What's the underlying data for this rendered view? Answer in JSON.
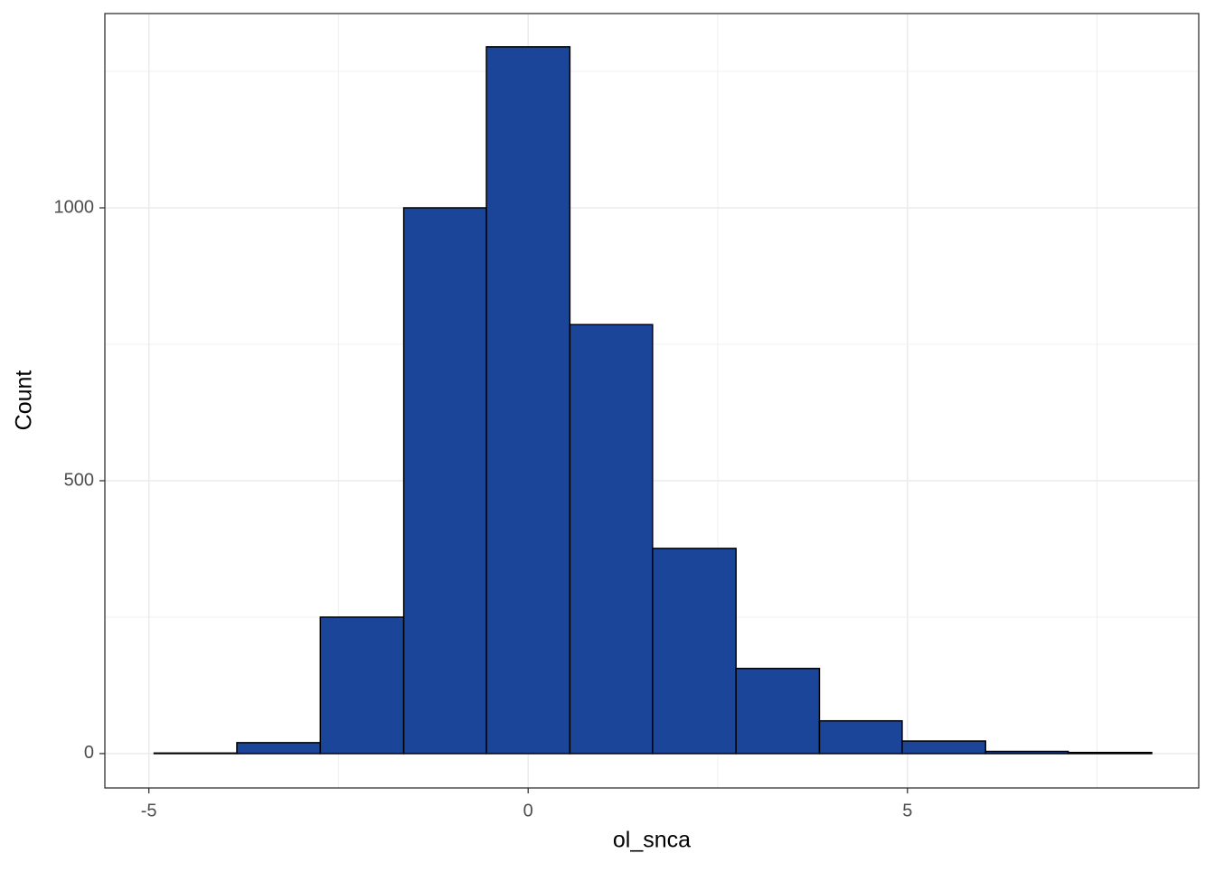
{
  "chart_data": {
    "type": "histogram",
    "x_label": "ol_snca",
    "y_label": "Count",
    "bins": [
      -4.93,
      -3.84,
      -2.74,
      -1.64,
      -0.55,
      0.55,
      1.64,
      2.74,
      3.84,
      4.93,
      6.03,
      7.12,
      8.22
    ],
    "values": [
      1,
      20,
      250,
      1000,
      1295,
      786,
      376,
      156,
      60,
      23,
      4,
      2
    ],
    "color": "#1a4599",
    "edge_color": "#000000",
    "xlim": [
      -5.58,
      8.84
    ],
    "xticks": [
      -5,
      0,
      5
    ],
    "ylim": [
      -63,
      1356
    ],
    "yticks": [
      0,
      500,
      1000
    ],
    "grid": true
  }
}
